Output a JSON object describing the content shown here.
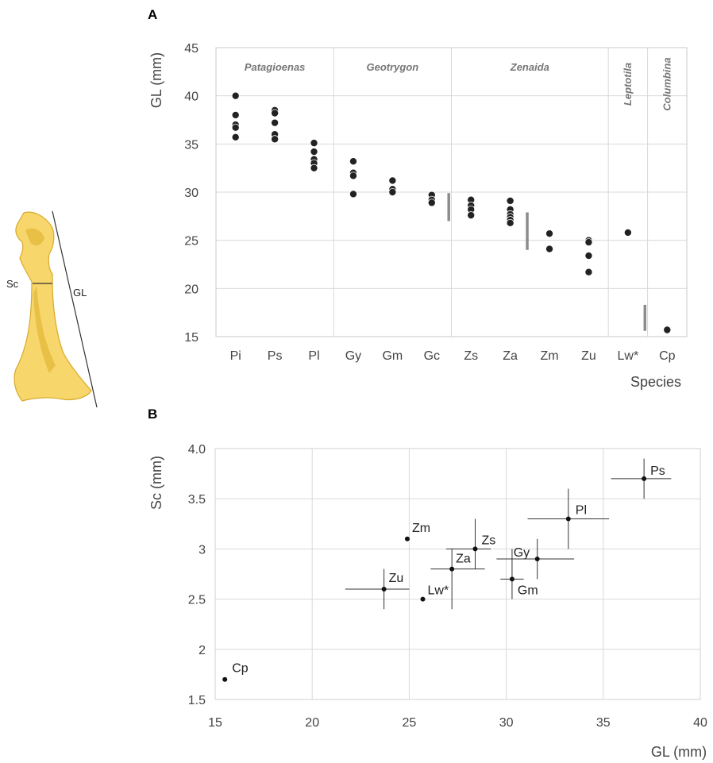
{
  "colors": {
    "bone_fill": "#f7d66b",
    "bone_shade": "#e2b736",
    "dot": "#222222",
    "range_bar": "#8c8c8c",
    "grid": "#d9d9d9",
    "text": "#444444"
  },
  "bone": {
    "labels": [
      "Sc",
      "GL"
    ]
  },
  "chart_data": [
    {
      "panel": "A",
      "type": "scatter",
      "ylabel": "GL (mm)",
      "xlabel": "Species",
      "ylim": [
        15,
        45
      ],
      "yticks": [
        15,
        20,
        25,
        30,
        35,
        40,
        45
      ],
      "grid": true,
      "categories": [
        "Pi",
        "Ps",
        "Pl",
        "Gy",
        "Gm",
        "Gc",
        "Zs",
        "Za",
        "Zm",
        "Zu",
        "Lw*",
        "Cp"
      ],
      "genera": [
        {
          "name": "Patagioenas",
          "from": 0,
          "to": 2,
          "rotated": false
        },
        {
          "name": "Geotrygon",
          "from": 3,
          "to": 5,
          "rotated": false
        },
        {
          "name": "Zenaida",
          "from": 6,
          "to": 9,
          "rotated": false
        },
        {
          "name": "Leptotila",
          "from": 10,
          "to": 10,
          "rotated": true
        },
        {
          "name": "Columbina",
          "from": 11,
          "to": 11,
          "rotated": true
        }
      ],
      "points": [
        {
          "category": "Pi",
          "values": [
            40.0,
            38.0,
            37.0,
            36.7,
            35.7
          ]
        },
        {
          "category": "Ps",
          "values": [
            38.5,
            38.2,
            37.2,
            36.0,
            35.5
          ]
        },
        {
          "category": "Pl",
          "values": [
            35.1,
            34.2,
            33.4,
            33.0,
            32.5
          ]
        },
        {
          "category": "Gy",
          "values": [
            33.2,
            32.0,
            31.7,
            29.8
          ]
        },
        {
          "category": "Gm",
          "values": [
            31.2,
            30.3,
            30.0
          ]
        },
        {
          "category": "Gc",
          "values": [
            29.7,
            29.2,
            28.9
          ]
        },
        {
          "category": "Zs",
          "values": [
            29.2,
            28.6,
            28.2,
            27.6
          ]
        },
        {
          "category": "Za",
          "values": [
            29.1,
            28.2,
            27.7,
            27.4,
            27.1,
            26.8
          ]
        },
        {
          "category": "Zm",
          "values": [
            25.7,
            24.1
          ]
        },
        {
          "category": "Zu",
          "values": [
            25.0,
            24.8,
            23.4,
            21.7
          ]
        },
        {
          "category": "Lw*",
          "values": [
            25.8
          ]
        },
        {
          "category": "Cp",
          "values": [
            15.7
          ]
        }
      ],
      "ranges": [
        {
          "category": "Zs",
          "min": 27.0,
          "max": 29.9
        },
        {
          "category": "Zm",
          "min": 24.0,
          "max": 27.9
        },
        {
          "category": "Cp",
          "min": 15.6,
          "max": 18.3
        }
      ]
    },
    {
      "panel": "B",
      "type": "scatter",
      "xlabel": "GL (mm)",
      "ylabel": "Sc (mm)",
      "xlim": [
        15,
        40
      ],
      "ylim": [
        1.5,
        4.0
      ],
      "xticks": [
        15,
        20,
        25,
        30,
        35,
        40
      ],
      "yticks": [
        1.5,
        2,
        2.5,
        3,
        3.5,
        4.0
      ],
      "ytick_labels": [
        "1.5",
        "2",
        "2.5",
        "3",
        "3.5",
        "4.0"
      ],
      "grid": true,
      "points": [
        {
          "label": "Ps",
          "x": 37.1,
          "y": 3.7,
          "xerr": [
            35.4,
            38.5
          ],
          "yerr": [
            3.5,
            3.9
          ]
        },
        {
          "label": "Pl",
          "x": 33.2,
          "y": 3.3,
          "xerr": [
            31.1,
            35.3
          ],
          "yerr": [
            3.0,
            3.6
          ]
        },
        {
          "label": "Gy",
          "x": 31.6,
          "y": 2.9,
          "xerr": [
            29.5,
            33.5
          ],
          "yerr": [
            2.7,
            3.1
          ]
        },
        {
          "label": "Gm",
          "x": 30.3,
          "y": 2.7,
          "xerr": [
            29.7,
            30.9
          ],
          "yerr": [
            2.5,
            3.0
          ]
        },
        {
          "label": "Zs",
          "x": 28.4,
          "y": 3.0,
          "xerr": [
            26.9,
            29.2
          ],
          "yerr": [
            2.8,
            3.3
          ]
        },
        {
          "label": "Za",
          "x": 27.2,
          "y": 2.8,
          "xerr": [
            26.1,
            28.9
          ],
          "yerr": [
            2.4,
            3.0
          ]
        },
        {
          "label": "Zm",
          "x": 24.9,
          "y": 3.1
        },
        {
          "label": "Zu",
          "x": 23.7,
          "y": 2.6,
          "xerr": [
            21.7,
            25.0
          ],
          "yerr": [
            2.4,
            2.8
          ]
        },
        {
          "label": "Lw*",
          "x": 25.7,
          "y": 2.5
        },
        {
          "label": "Cp",
          "x": 15.5,
          "y": 1.7
        }
      ]
    }
  ]
}
